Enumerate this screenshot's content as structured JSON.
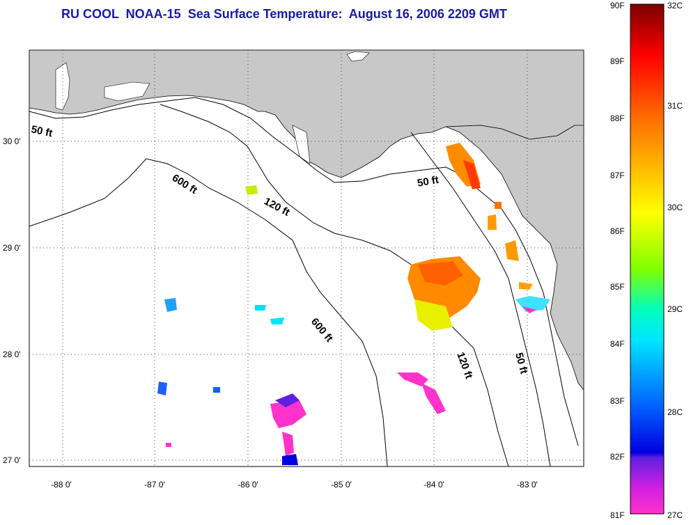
{
  "title": "RU COOL  NOAA-15  Sea Surface Temperature:  August 16, 2006 2209 GMT",
  "map": {
    "lon_ticks": [
      "-88 0'",
      "-87 0'",
      "-86 0'",
      "-85 0'",
      "-84 0'",
      "-83 0'"
    ],
    "lat_ticks": [
      "30 0'",
      "29 0'",
      "28 0'",
      "27 0'"
    ],
    "contours": [
      "50 ft",
      "600 ft",
      "120 ft",
      "600 ft",
      "50 ft",
      "120 ft",
      "50 ft"
    ]
  },
  "colorbar": {
    "fahrenheit": [
      "90F",
      "89F",
      "88F",
      "87F",
      "86F",
      "85F",
      "84F",
      "83F",
      "82F",
      "81F"
    ],
    "celsius": [
      "32C",
      "31C",
      "30C",
      "29C",
      "28C",
      "27C"
    ],
    "colors": [
      "#8b0000",
      "#ff0000",
      "#ff8c00",
      "#ffff00",
      "#7fff00",
      "#00ffff",
      "#0000ff",
      "#8a2be2",
      "#ff33cc"
    ]
  }
}
